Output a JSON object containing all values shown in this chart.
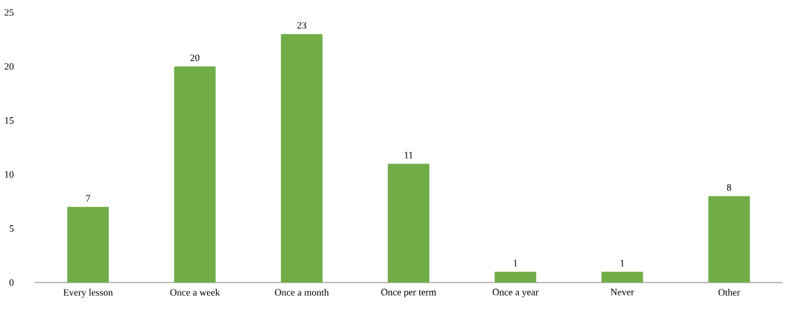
{
  "chart_data": {
    "type": "bar",
    "categories": [
      "Every lesson",
      "Once a week",
      "Once a month",
      "Once per term",
      "Once a year",
      "Never",
      "Other"
    ],
    "values": [
      7,
      20,
      23,
      11,
      1,
      1,
      8
    ],
    "color": "#70ad47",
    "ylim": [
      0,
      25
    ],
    "yticks": [
      0,
      5,
      10,
      15,
      20,
      25
    ],
    "data_labels": true
  }
}
